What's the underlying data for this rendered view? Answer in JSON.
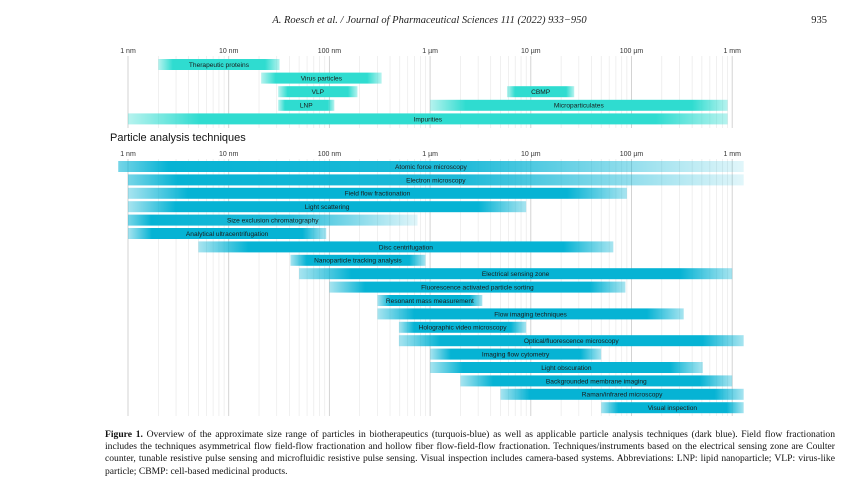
{
  "header": {
    "title": "A. Roesch et al. / Journal of Pharmaceutical Sciences 111 (2022) 933−950",
    "page_number": "935"
  },
  "figure": {
    "section_title": "Particle analysis techniques",
    "caption_label": "Figure 1.",
    "caption_text": "Overview of the approximate size range of particles in biotherapeutics (turquois-blue) as well as applicable particle analysis techniques (dark blue). Field flow fractionation includes the techniques asymmetrical flow field-flow fractionation and hollow fiber flow-field-flow fractionation. Techniques/instruments based on the electrical sensing zone are Coulter counter, tunable resistive pulse sensing and microfluidic resistive pulse sensing. Visual inspection includes camera-based systems. Abbreviations: LNP: lipid nanoparticle; VLP: virus-like particle; CBMP: cell-based medicinal products."
  },
  "chart_data": [
    {
      "type": "bar",
      "orientation": "horizontal-range",
      "x_scale": "log",
      "x_unit": "nm",
      "xlim": [
        1,
        1000000
      ],
      "tick_values": [
        1,
        10,
        100,
        1000,
        10000,
        100000,
        1000000
      ],
      "tick_labels": [
        "1 nm",
        "10 nm",
        "100 nm",
        "1 µm",
        "10 µm",
        "100 µm",
        "1 mm"
      ],
      "grid": true,
      "color": "#2fdcd0",
      "bars": [
        {
          "label": "Therapeutic proteins",
          "min": 2,
          "max": 32
        },
        {
          "label": "Virus particles",
          "min": 21,
          "max": 330
        },
        {
          "label": "VLP",
          "min": 31,
          "max": 190
        },
        {
          "label": "CBMP",
          "min": 5800,
          "max": 27000
        },
        {
          "label": "LNP",
          "min": 31,
          "max": 112
        },
        {
          "label": "Microparticulates",
          "min": 1000,
          "max": 900000
        },
        {
          "label": "Impurities",
          "min": 1,
          "max": 900000
        }
      ],
      "rows": [
        [
          0
        ],
        [
          1
        ],
        [
          2,
          3
        ],
        [
          4,
          5
        ],
        [
          6
        ]
      ]
    },
    {
      "type": "bar",
      "orientation": "horizontal-range",
      "x_scale": "log",
      "x_unit": "nm",
      "xlim": [
        1,
        1000000
      ],
      "tick_values": [
        1,
        10,
        100,
        1000,
        10000,
        100000,
        1000000
      ],
      "tick_labels": [
        "1 nm",
        "10 nm",
        "100 nm",
        "1 µm",
        "10 µm",
        "100 µm",
        "1 mm"
      ],
      "grid": true,
      "color": "#06b3d4",
      "bars": [
        {
          "label": "Atomic force microscopy",
          "min": 0.8,
          "max": 1300000,
          "fade": "right"
        },
        {
          "label": "Electron microscopy",
          "min": 1,
          "max": 1300000,
          "fade": "right"
        },
        {
          "label": "Field flow fractionation",
          "min": 1,
          "max": 90000
        },
        {
          "label": "Light scattering",
          "min": 1,
          "max": 9000
        },
        {
          "label": "Size exclusion chromatography",
          "min": 1,
          "max": 750,
          "fade": "right"
        },
        {
          "label": "Analytical ultracentrifugation",
          "min": 1,
          "max": 93
        },
        {
          "label": "Disc centrifugation",
          "min": 5,
          "max": 66000
        },
        {
          "label": "Nanoparticle tracking analysis",
          "min": 41,
          "max": 900
        },
        {
          "label": "Electrical sensing zone",
          "min": 50,
          "max": 1000000
        },
        {
          "label": "Fluorescence activated particle sorting",
          "min": 100,
          "max": 87000
        },
        {
          "label": "Resonant mass measurement",
          "min": 300,
          "max": 3300
        },
        {
          "label": "Flow imaging techniques",
          "min": 300,
          "max": 330000
        },
        {
          "label": "Holographic video microscopy",
          "min": 490,
          "max": 9000
        },
        {
          "label": "Optical/fluorescence microscopy",
          "min": 490,
          "max": 1300000
        },
        {
          "label": "Imaging flow cytometry",
          "min": 1000,
          "max": 50000
        },
        {
          "label": "Light obscuration",
          "min": 1000,
          "max": 510000
        },
        {
          "label": "Backgrounded membrane imaging",
          "min": 2000,
          "max": 1000000
        },
        {
          "label": "Raman/infrared microscopy",
          "min": 5000,
          "max": 1300000
        },
        {
          "label": "Visual inspection",
          "min": 50000,
          "max": 1300000
        }
      ]
    }
  ]
}
